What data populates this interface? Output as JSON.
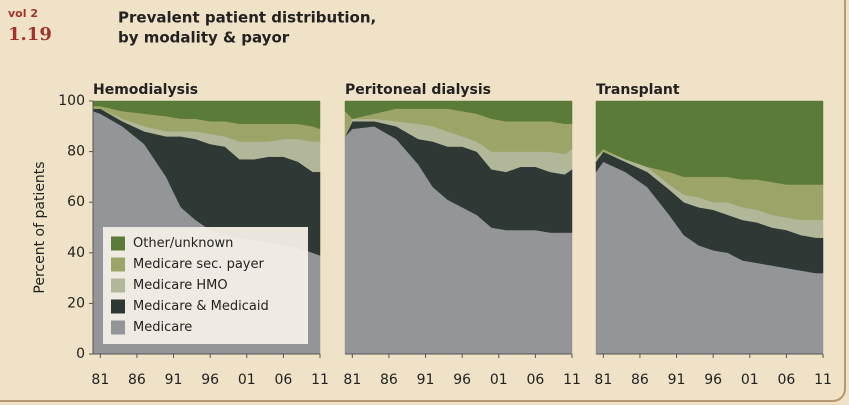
{
  "header": {
    "vol": "vol 2",
    "figure": "1.19",
    "title_lines": [
      "Prevalent patient distribution,",
      "by modality & payor"
    ]
  },
  "chart_data": [
    {
      "type": "stacked_area",
      "title": "Hemodialysis",
      "ylabel": "Percent of patients",
      "legend": "lower left",
      "x": [
        1980,
        1981,
        1984,
        1987,
        1990,
        1992,
        1994,
        1996,
        1998,
        2000,
        2002,
        2004,
        2006,
        2008,
        2010,
        2011
      ],
      "xlim": [
        1980,
        2011
      ],
      "xticks": [
        {
          "value": 1981,
          "label": "81"
        },
        {
          "value": 1986,
          "label": "86"
        },
        {
          "value": 1991,
          "label": "91"
        },
        {
          "value": 1996,
          "label": "96"
        },
        {
          "value": 2001,
          "label": "01"
        },
        {
          "value": 2006,
          "label": "06"
        },
        {
          "value": 2011,
          "label": "11"
        }
      ],
      "ylim": [
        0,
        100
      ],
      "yticks": [
        0,
        20,
        40,
        60,
        80,
        100
      ],
      "series": [
        {
          "name": "Medicare",
          "color": "#939598",
          "values": [
            96,
            95,
            90,
            83,
            70,
            58,
            53,
            49,
            47,
            46,
            45,
            44,
            43,
            42,
            40,
            39
          ]
        },
        {
          "name": "Medicare & Medicaid",
          "color": "#2e3835",
          "values": [
            1,
            2,
            2,
            5,
            16,
            28,
            32,
            34,
            35,
            31,
            32,
            34,
            35,
            34,
            32,
            33
          ]
        },
        {
          "name": "Medicare HMO",
          "color": "#b2b799",
          "values": [
            0,
            0,
            1,
            2,
            2,
            2,
            3,
            4,
            4,
            7,
            7,
            6,
            7,
            9,
            12,
            12
          ]
        },
        {
          "name": "Medicare sec. payer",
          "color": "#9da468",
          "values": [
            1,
            1,
            3,
            5,
            6,
            5,
            5,
            5,
            6,
            7,
            7,
            7,
            6,
            6,
            6,
            5
          ]
        },
        {
          "name": "Other/unknown",
          "color": "#5b7b38",
          "values": [
            2,
            2,
            4,
            5,
            6,
            7,
            7,
            8,
            8,
            9,
            9,
            9,
            9,
            9,
            10,
            11
          ]
        }
      ]
    },
    {
      "type": "stacked_area",
      "title": "Peritoneal dialysis",
      "x": [
        1980,
        1981,
        1984,
        1987,
        1990,
        1992,
        1994,
        1996,
        1998,
        2000,
        2002,
        2004,
        2006,
        2008,
        2010,
        2011
      ],
      "xlim": [
        1980,
        2011
      ],
      "xticks": [
        {
          "value": 1981,
          "label": "81"
        },
        {
          "value": 1986,
          "label": "86"
        },
        {
          "value": 1991,
          "label": "91"
        },
        {
          "value": 1996,
          "label": "96"
        },
        {
          "value": 2001,
          "label": "01"
        },
        {
          "value": 2006,
          "label": "06"
        },
        {
          "value": 2011,
          "label": "11"
        }
      ],
      "ylim": [
        0,
        100
      ],
      "series": [
        {
          "name": "Medicare",
          "color": "#939598",
          "values": [
            86,
            89,
            90,
            85,
            75,
            66,
            61,
            58,
            55,
            50,
            49,
            49,
            49,
            48,
            48,
            48
          ]
        },
        {
          "name": "Medicare & Medicaid",
          "color": "#2e3835",
          "values": [
            0,
            3,
            2,
            5,
            10,
            18,
            21,
            24,
            25,
            23,
            23,
            25,
            25,
            24,
            23,
            25
          ]
        },
        {
          "name": "Medicare HMO",
          "color": "#b2b799",
          "values": [
            0,
            1,
            1,
            2,
            6,
            6,
            6,
            4,
            4,
            7,
            8,
            6,
            6,
            8,
            8,
            8
          ]
        },
        {
          "name": "Medicare sec. payer",
          "color": "#9da468",
          "values": [
            10,
            0,
            2,
            5,
            6,
            7,
            9,
            10,
            11,
            13,
            12,
            12,
            12,
            12,
            12,
            10
          ]
        },
        {
          "name": "Other/unknown",
          "color": "#5b7b38",
          "values": [
            4,
            7,
            5,
            3,
            3,
            3,
            3,
            4,
            5,
            7,
            8,
            8,
            8,
            8,
            9,
            9
          ]
        }
      ]
    },
    {
      "type": "stacked_area",
      "title": "Transplant",
      "x": [
        1980,
        1981,
        1984,
        1987,
        1990,
        1992,
        1994,
        1996,
        1998,
        2000,
        2002,
        2004,
        2006,
        2008,
        2010,
        2011
      ],
      "xlim": [
        1980,
        2011
      ],
      "xticks": [
        {
          "value": 1981,
          "label": "81"
        },
        {
          "value": 1986,
          "label": "86"
        },
        {
          "value": 1991,
          "label": "91"
        },
        {
          "value": 1996,
          "label": "96"
        },
        {
          "value": 2001,
          "label": "01"
        },
        {
          "value": 2006,
          "label": "06"
        },
        {
          "value": 2011,
          "label": "11"
        }
      ],
      "ylim": [
        0,
        100
      ],
      "series": [
        {
          "name": "Medicare",
          "color": "#939598",
          "values": [
            72,
            76,
            72,
            66,
            55,
            47,
            43,
            41,
            40,
            37,
            36,
            35,
            34,
            33,
            32,
            32
          ]
        },
        {
          "name": "Medicare & Medicaid",
          "color": "#2e3835",
          "values": [
            4,
            4,
            4,
            6,
            10,
            13,
            15,
            16,
            15,
            16,
            16,
            15,
            15,
            14,
            14,
            14
          ]
        },
        {
          "name": "Medicare HMO",
          "color": "#b2b799",
          "values": [
            2,
            0,
            1,
            2,
            2,
            3,
            4,
            3,
            5,
            5,
            5,
            5,
            5,
            6,
            7,
            7
          ]
        },
        {
          "name": "Medicare sec. payer",
          "color": "#9da468",
          "values": [
            0,
            1,
            0,
            0,
            5,
            7,
            8,
            10,
            10,
            11,
            12,
            13,
            13,
            14,
            14,
            14
          ]
        },
        {
          "name": "Other/unknown",
          "color": "#5b7b38",
          "values": [
            22,
            19,
            23,
            26,
            28,
            30,
            30,
            30,
            30,
            31,
            31,
            32,
            33,
            33,
            33,
            33
          ]
        }
      ]
    }
  ]
}
